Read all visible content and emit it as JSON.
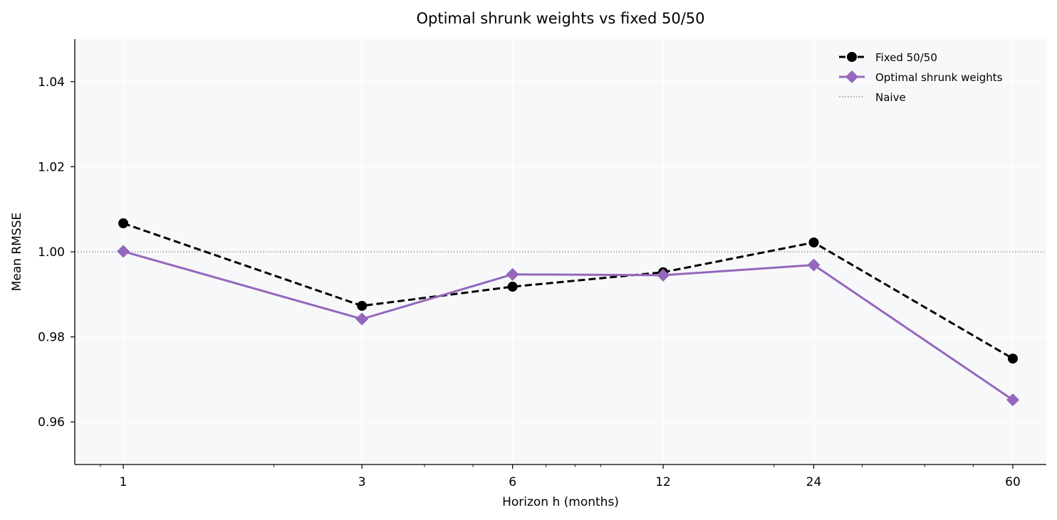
{
  "chart_data": {
    "type": "line",
    "title": "Optimal shrunk weights vs fixed 50/50",
    "xlabel": "Horizon h (months)",
    "ylabel": "Mean RMSSE",
    "x": [
      1,
      3,
      6,
      12,
      24,
      60
    ],
    "x_scale": "log",
    "xlim": [
      0.8,
      70
    ],
    "ylim": [
      0.95,
      1.05
    ],
    "yticks": [
      "0.96",
      "0.98",
      "1.00",
      "1.02",
      "1.04"
    ],
    "xticks": [
      "1",
      "3",
      "6",
      "12",
      "24",
      "60"
    ],
    "grid": true,
    "legend_position": "top-right",
    "series": [
      {
        "name": "Fixed 50/50",
        "values": [
          1.0067,
          0.9873,
          0.9918,
          0.9952,
          1.0022,
          0.9749
        ],
        "color": "#000000",
        "style": "dashed",
        "marker": "circle"
      },
      {
        "name": "Optimal shrunk weights",
        "values": [
          1.0001,
          0.9842,
          0.9947,
          0.9945,
          0.9969,
          0.9652
        ],
        "color": "#9467bd",
        "style": "solid",
        "marker": "diamond"
      }
    ],
    "reference_line": {
      "name": "Naive",
      "value": 1.0,
      "color": "#808080",
      "style": "dotted"
    }
  }
}
